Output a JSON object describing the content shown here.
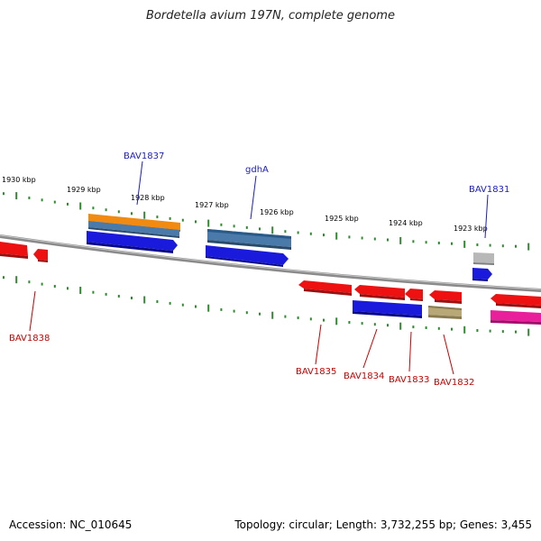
{
  "title": "Bordetella avium 197N, complete genome",
  "footer": {
    "accession": "Accession: NC_010645",
    "topology": "Topology: circular; Length: 3,732,255 bp; Genes: 3,455"
  },
  "colors": {
    "backbone": "#7a7a7a",
    "tick": "#2e8b2e",
    "blue_label": "#1a1acc",
    "red_label": "#cc0000",
    "red_gene": "#ee1111",
    "blue_gene": "#1a1add",
    "orange_gene": "#f08a10",
    "steel_gene": "#4a7aaa",
    "gray_gene": "#b8b8b8",
    "khaki_gene": "#b8a878",
    "magenta_gene": "#e8209a"
  },
  "scale": {
    "ticks": [
      "1930 kbp",
      "1929 kbp",
      "1928 kbp",
      "1927 kbp",
      "1926 kbp",
      "1925 kbp",
      "1924 kbp",
      "1923 kbp"
    ]
  },
  "gene_labels": {
    "top": [
      "BAV1837",
      "gdhA",
      "BAV1831"
    ],
    "bottom": [
      "BAV1838",
      "BAV1835",
      "BAV1834",
      "BAV1833",
      "BAV1832"
    ]
  }
}
